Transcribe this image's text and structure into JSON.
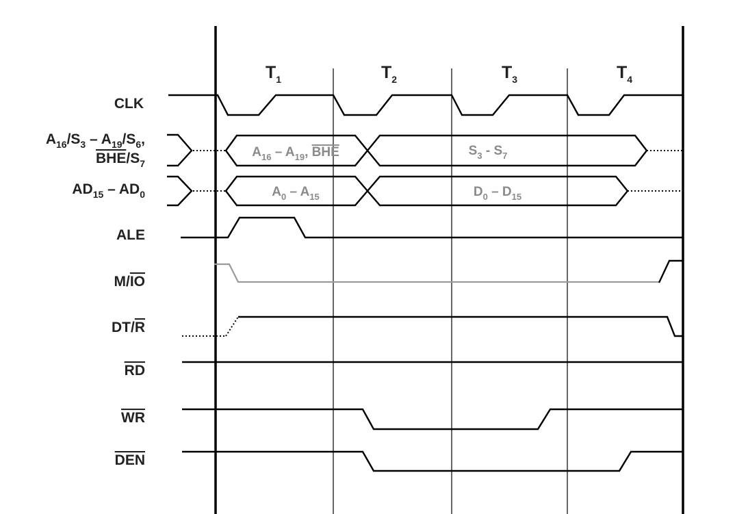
{
  "states": [
    {
      "main": "T",
      "sub": "1"
    },
    {
      "main": "T",
      "sub": "2"
    },
    {
      "main": "T",
      "sub": "3"
    },
    {
      "main": "T",
      "sub": "4"
    }
  ],
  "signals": {
    "clk": "CLK",
    "addr_status_line1": [
      {
        "t": "A"
      },
      {
        "t": "16",
        "s": true
      },
      {
        "t": "/S"
      },
      {
        "t": "3",
        "s": true
      },
      {
        "t": " – A"
      },
      {
        "t": "19",
        "s": true
      },
      {
        "t": "/S"
      },
      {
        "t": "6",
        "s": true
      },
      {
        "t": ","
      }
    ],
    "addr_status_line2": [
      {
        "t": "BHE",
        "o": true
      },
      {
        "t": "/S"
      },
      {
        "t": "7",
        "s": true
      }
    ],
    "ad_bus": [
      {
        "t": "AD"
      },
      {
        "t": "15",
        "s": true
      },
      {
        "t": " – AD"
      },
      {
        "t": "0",
        "s": true
      }
    ],
    "ale": "ALE",
    "mio": [
      {
        "t": "M/"
      },
      {
        "t": "IO",
        "o": true
      }
    ],
    "dtr": [
      {
        "t": "DT/"
      },
      {
        "t": "R",
        "o": true
      }
    ],
    "rd": [
      {
        "t": "RD",
        "o": true
      }
    ],
    "wr": [
      {
        "t": "WR",
        "o": true
      }
    ],
    "den": [
      {
        "t": "DEN",
        "o": true
      }
    ]
  },
  "bus_values": {
    "upper_address": [
      {
        "t": "A"
      },
      {
        "t": "16",
        "s": true
      },
      {
        "t": " – A"
      },
      {
        "t": "19",
        "s": true
      },
      {
        "t": ", "
      },
      {
        "t": "BHE",
        "o": true
      }
    ],
    "status": [
      {
        "t": "S"
      },
      {
        "t": "3",
        "s": true
      },
      {
        "t": " - S"
      },
      {
        "t": "7",
        "s": true
      }
    ],
    "address": [
      {
        "t": "A"
      },
      {
        "t": "0",
        "s": true
      },
      {
        "t": " – A"
      },
      {
        "t": "15",
        "s": true
      }
    ],
    "data": [
      {
        "t": "D"
      },
      {
        "t": "0",
        "s": true
      },
      {
        "t": " – D"
      },
      {
        "t": "15",
        "s": true
      }
    ]
  },
  "colors": {
    "line": "#000000",
    "label": "#222222",
    "bus_text": "#8a8a8a",
    "mio_wave": "#9a9a9a"
  }
}
